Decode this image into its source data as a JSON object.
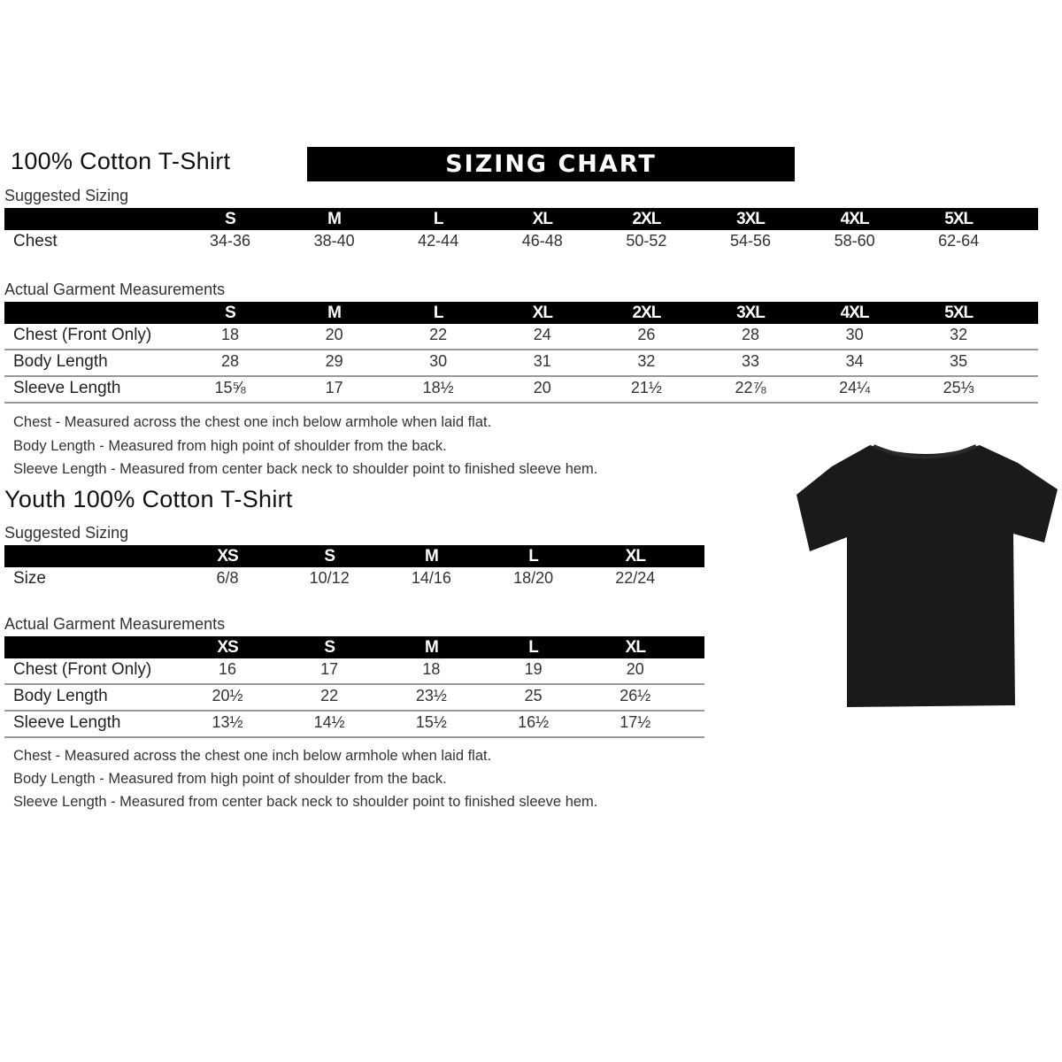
{
  "adult": {
    "title": "100% Cotton T-Shirt",
    "banner": "SIZING CHART",
    "suggested_label": "Suggested Sizing",
    "sizes": [
      "S",
      "M",
      "L",
      "XL",
      "2XL",
      "3XL",
      "4XL",
      "5XL"
    ],
    "suggested_rows": [
      {
        "label": "Chest",
        "values": [
          "34-36",
          "38-40",
          "42-44",
          "46-48",
          "50-52",
          "54-56",
          "58-60",
          "62-64"
        ]
      }
    ],
    "actual_label": "Actual Garment Measurements",
    "actual_rows": [
      {
        "label": "Chest (Front Only)",
        "values": [
          "18",
          "20",
          "22",
          "24",
          "26",
          "28",
          "30",
          "32"
        ]
      },
      {
        "label": "Body Length",
        "values": [
          "28",
          "29",
          "30",
          "31",
          "32",
          "33",
          "34",
          "35"
        ]
      },
      {
        "label": "Sleeve Length",
        "values": [
          "15⅝",
          "17",
          "18½",
          "20",
          "21½",
          "22⅞",
          "24¼",
          "25⅓"
        ]
      }
    ],
    "notes": [
      "Chest - Measured across the chest one inch below armhole when laid flat.",
      "Body Length - Measured from high point of shoulder from the back.",
      "Sleeve Length - Measured from center back neck to shoulder point to finished sleeve hem."
    ]
  },
  "youth": {
    "title": "Youth 100% Cotton T-Shirt",
    "suggested_label": "Suggested Sizing",
    "sizes": [
      "XS",
      "S",
      "M",
      "L",
      "XL"
    ],
    "suggested_rows": [
      {
        "label": "Size",
        "values": [
          "6/8",
          "10/12",
          "14/16",
          "18/20",
          "22/24"
        ]
      }
    ],
    "actual_label": "Actual Garment Measurements",
    "actual_rows": [
      {
        "label": "Chest (Front Only)",
        "values": [
          "16",
          "17",
          "18",
          "19",
          "20"
        ]
      },
      {
        "label": "Body Length",
        "values": [
          "20½",
          "22",
          "23½",
          "25",
          "26½"
        ]
      },
      {
        "label": "Sleeve Length",
        "values": [
          "13½",
          "14½",
          "15½",
          "16½",
          "17½"
        ]
      }
    ],
    "notes": [
      "Chest - Measured across the chest one inch below armhole when laid flat.",
      "Body Length - Measured from high point of shoulder from the back.",
      "Sleeve Length - Measured from center back neck to shoulder point to finished sleeve hem."
    ]
  },
  "image": {
    "icon": "black-tshirt-image",
    "color": "#1a1a1a"
  }
}
